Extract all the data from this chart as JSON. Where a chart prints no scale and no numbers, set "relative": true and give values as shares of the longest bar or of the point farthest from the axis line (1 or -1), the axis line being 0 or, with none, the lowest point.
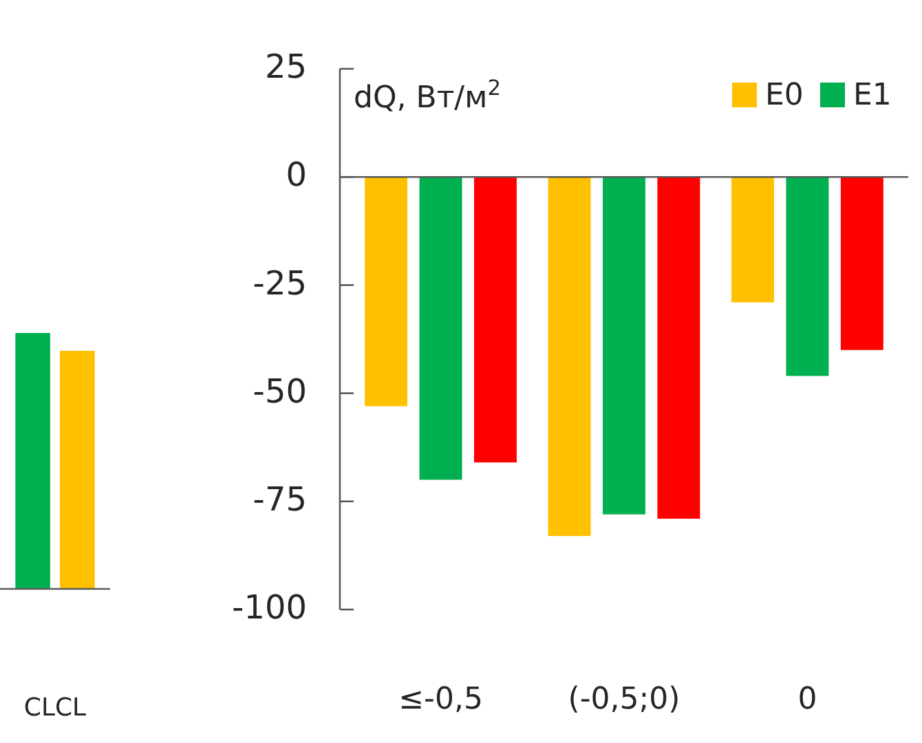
{
  "chart_data": [
    {
      "type": "bar",
      "relative": true,
      "categories": [
        "CLCL"
      ],
      "series": [
        {
          "color": "#00b050",
          "values": [
            1
          ]
        },
        {
          "color": "#ffc000",
          "values": [
            0.93
          ]
        }
      ]
    },
    {
      "type": "bar",
      "ylabel": "dQ, Вт/м$^{2}$",
      "categories": [
        "≤-0,5",
        "(-0,5;0)",
        "0"
      ],
      "ylim": [
        -100,
        25
      ],
      "yticks": [
        25,
        0,
        -25,
        -50,
        -75,
        -100
      ],
      "legend": "top right",
      "series": [
        {
          "name": "E0",
          "color": "#ffc000",
          "values": [
            -53,
            -83,
            -29
          ]
        },
        {
          "name": "E1",
          "color": "#00b050",
          "values": [
            -70,
            -78,
            -46
          ]
        },
        {
          "color": "#ff0000",
          "values": [
            -66,
            -79,
            -40
          ]
        }
      ]
    }
  ]
}
